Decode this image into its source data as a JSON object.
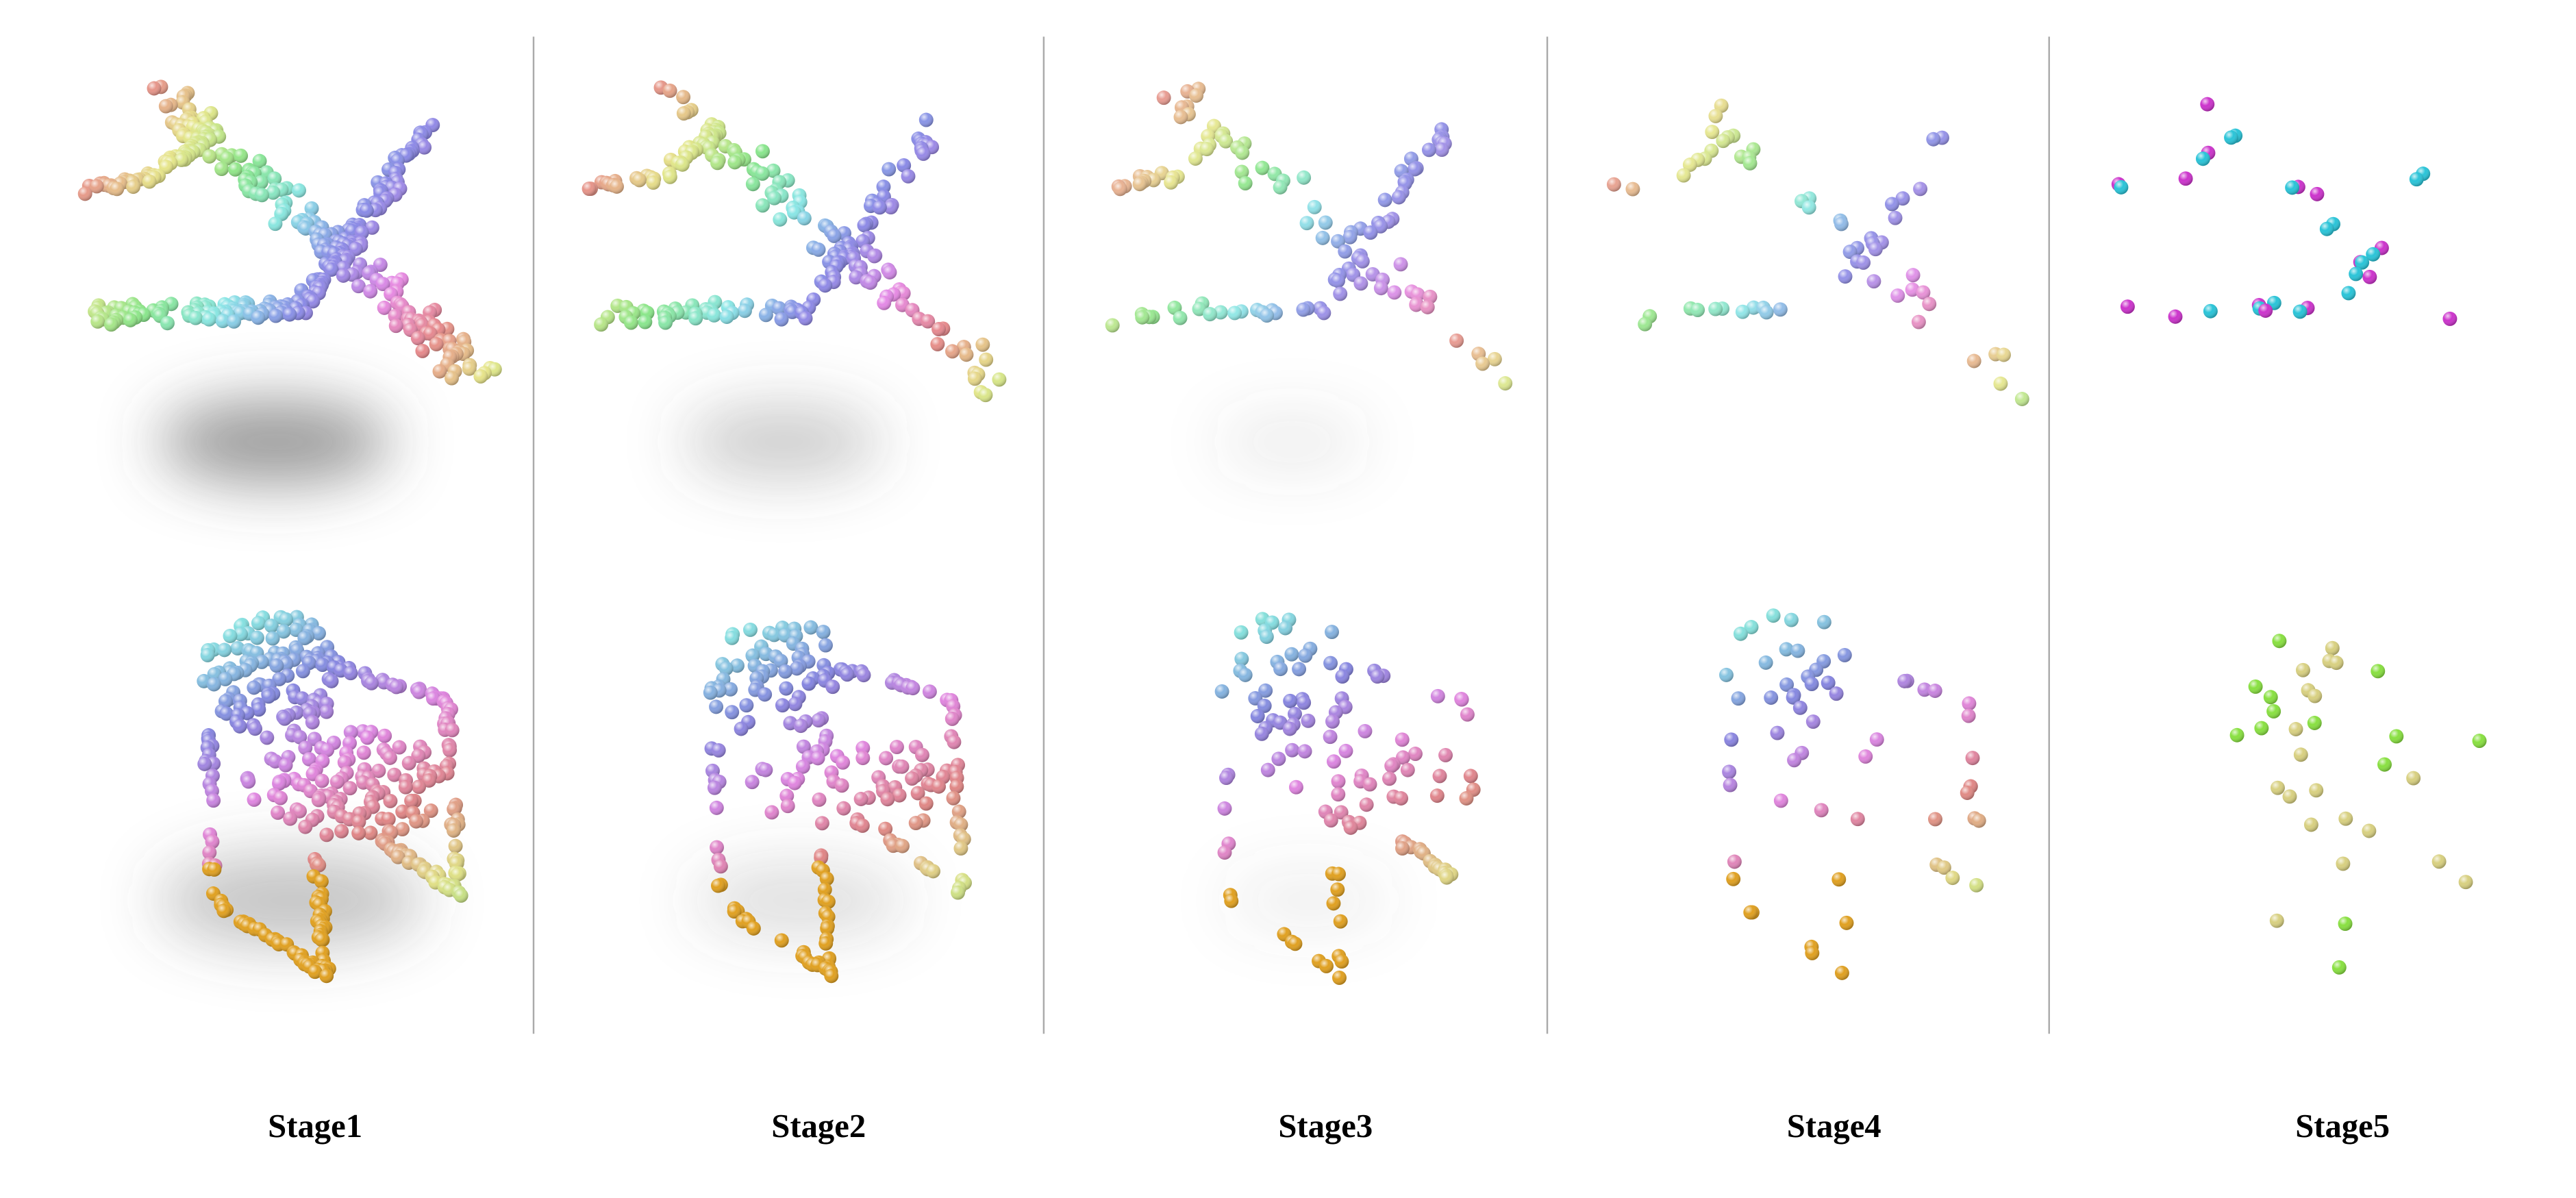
{
  "figure": {
    "stages": [
      "Stage1",
      "Stage2",
      "Stage3",
      "Stage4",
      "Stage5"
    ]
  }
}
